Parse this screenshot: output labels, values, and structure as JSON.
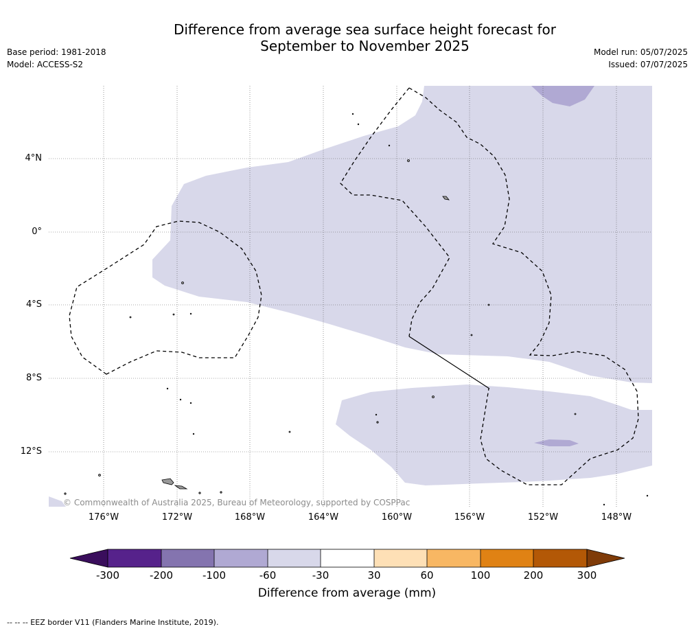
{
  "header": {
    "title_line1": "Difference from average sea surface height forecast for",
    "title_line2": "September to November 2025",
    "base_period": "Base period: 1981-2018",
    "model": "Model: ACCESS-S2",
    "model_run": "Model run: 05/07/2025",
    "issued": "Issued: 07/07/2025"
  },
  "map": {
    "lat_labels": [
      "4°N",
      "0°",
      "4°S",
      "8°S",
      "12°S"
    ],
    "lon_labels": [
      "176°W",
      "172°W",
      "168°W",
      "164°W",
      "160°W",
      "156°W",
      "152°W",
      "148°W"
    ],
    "copyright": "© Commonwealth of Australia 2025, Bureau of Meteorology, supported by COSPPac",
    "eez_color": "#000000",
    "fill_light": "#d8d8ea",
    "fill_medium": "#b0a9d3"
  },
  "colorbar": {
    "title": "Difference from average (mm)",
    "tick_labels": [
      "-300",
      "-200",
      "-100",
      "-60",
      "-30",
      "30",
      "60",
      "100",
      "200",
      "300"
    ],
    "colors": [
      "#3a0e5c",
      "#56228b",
      "#8474af",
      "#b0a9d3",
      "#d8d8ea",
      "#ffffff",
      "#fee0b6",
      "#f8b763",
      "#e08214",
      "#b35806",
      "#7f3b08"
    ]
  },
  "footer": {
    "note": "--  --  -- EEZ border V11 (Flanders Marine Institute, 2019)."
  }
}
